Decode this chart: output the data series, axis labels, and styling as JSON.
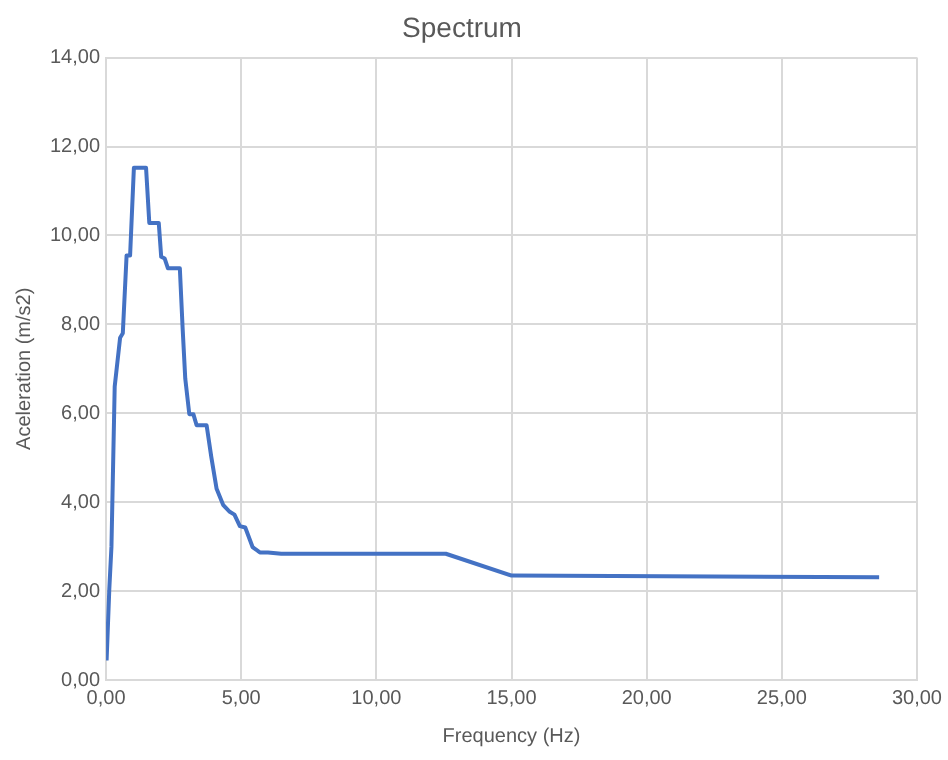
{
  "chart_data": {
    "type": "line",
    "title": "Spectrum",
    "xlabel": "Frequency (Hz)",
    "ylabel": "Aceleration (m/s2)",
    "series": [
      {
        "color": "#4472c4",
        "x": [
          0.02,
          0.12,
          0.2,
          0.32,
          0.52,
          0.62,
          0.76,
          0.89,
          1.03,
          1.48,
          1.6,
          1.95,
          2.04,
          2.17,
          2.29,
          2.73,
          2.83,
          2.93,
          3.08,
          3.23,
          3.35,
          3.72,
          3.89,
          4.09,
          4.33,
          4.56,
          4.75,
          4.95,
          5.15,
          5.42,
          5.69,
          5.99,
          6.48,
          12.57,
          15,
          28.6
        ],
        "values": [
          0.44,
          2.04,
          3.0,
          6.6,
          7.7,
          7.8,
          9.55,
          9.55,
          11.52,
          11.52,
          10.28,
          10.28,
          9.52,
          9.48,
          9.26,
          9.26,
          7.95,
          6.78,
          5.98,
          5.98,
          5.73,
          5.73,
          5.03,
          4.3,
          3.94,
          3.79,
          3.72,
          3.46,
          3.43,
          2.99,
          2.87,
          2.87,
          2.84,
          2.84,
          2.35,
          2.31
        ]
      }
    ],
    "xlim": [
      0,
      30
    ],
    "xticks": [
      {
        "value": 0,
        "label": "0,00"
      },
      {
        "value": 5,
        "label": "5,00"
      },
      {
        "value": 10,
        "label": "10,00"
      },
      {
        "value": 15,
        "label": "15,00"
      },
      {
        "value": 20,
        "label": "20,00"
      },
      {
        "value": 25,
        "label": "25,00"
      },
      {
        "value": 30,
        "label": "30,00"
      }
    ],
    "ylim": [
      0,
      14
    ],
    "yticks": [
      {
        "value": 0,
        "label": "0,00"
      },
      {
        "value": 2,
        "label": "2,00"
      },
      {
        "value": 4,
        "label": "4,00"
      },
      {
        "value": 6,
        "label": "6,00"
      },
      {
        "value": 8,
        "label": "8,00"
      },
      {
        "value": 10,
        "label": "10,00"
      },
      {
        "value": 12,
        "label": "12,00"
      },
      {
        "value": 14,
        "label": "14,00"
      }
    ],
    "grid": true,
    "marker": "none",
    "line_style": "solid"
  }
}
